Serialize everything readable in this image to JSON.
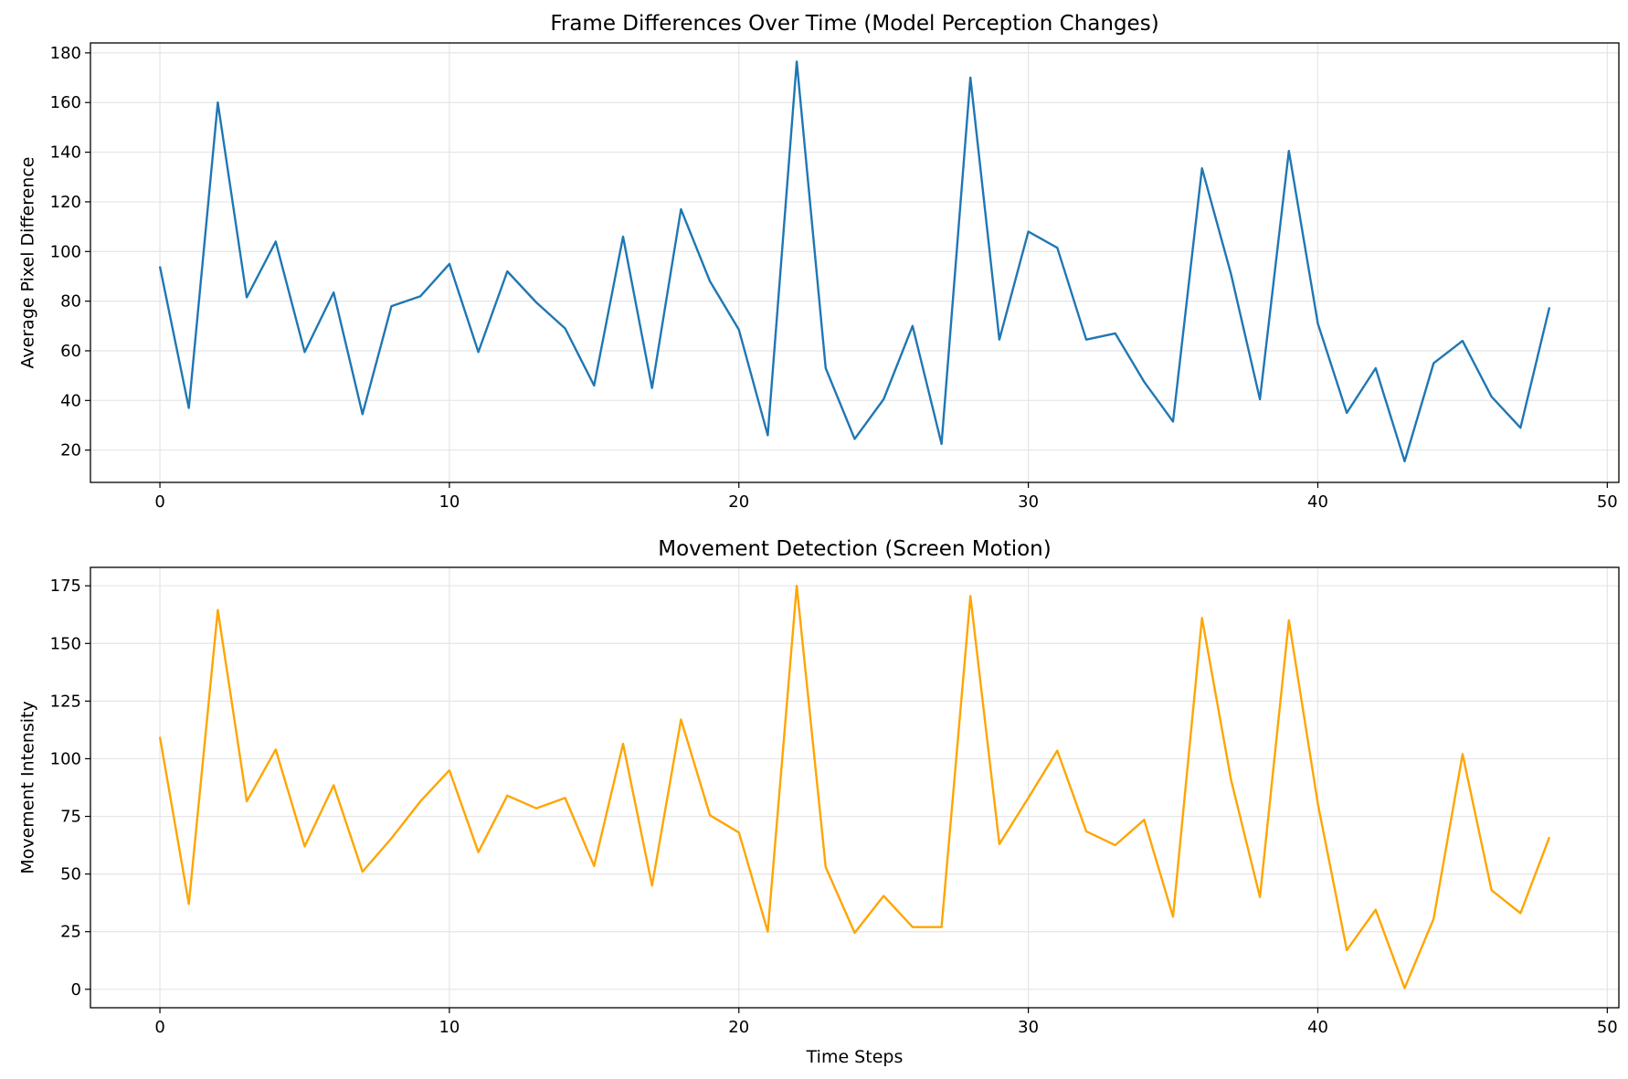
{
  "chart_data": [
    {
      "type": "line",
      "title": "Frame Differences Over Time (Model Perception Changes)",
      "xlabel": "",
      "ylabel": "Average Pixel Difference",
      "xlim": [
        -2.4,
        50.4
      ],
      "ylim": [
        7,
        184
      ],
      "xticks": [
        0,
        10,
        20,
        30,
        40,
        50
      ],
      "yticks": [
        20,
        40,
        60,
        80,
        100,
        120,
        140,
        160,
        180
      ],
      "grid": true,
      "color": "#1f77b4",
      "x": [
        0,
        1,
        2,
        3,
        4,
        5,
        6,
        7,
        8,
        9,
        10,
        11,
        12,
        13,
        14,
        15,
        16,
        17,
        18,
        19,
        20,
        21,
        22,
        23,
        24,
        25,
        26,
        27,
        28,
        29,
        30,
        31,
        32,
        33,
        34,
        35,
        36,
        37,
        38,
        39,
        40,
        41,
        42,
        43,
        44,
        45,
        46,
        47,
        48
      ],
      "y": [
        94,
        37,
        160,
        81.5,
        104,
        59.5,
        83.5,
        34.5,
        78,
        82,
        95,
        59.5,
        92,
        79.5,
        69,
        46,
        106,
        45,
        117,
        88,
        68.5,
        26,
        176.5,
        53,
        24.5,
        40.5,
        70,
        22.5,
        170,
        64.5,
        108,
        101.5,
        64.5,
        67,
        47.5,
        31.5,
        133.5,
        91,
        40.5,
        140.5,
        71,
        35,
        53,
        15.5,
        55,
        64,
        41.5,
        29,
        77.5
      ]
    },
    {
      "type": "line",
      "title": "Movement Detection (Screen Motion)",
      "xlabel": "Time Steps",
      "ylabel": "Movement Intensity",
      "xlim": [
        -2.4,
        50.4
      ],
      "ylim": [
        -8,
        183
      ],
      "xticks": [
        0,
        10,
        20,
        30,
        40,
        50
      ],
      "yticks": [
        0,
        25,
        50,
        75,
        100,
        125,
        150,
        175
      ],
      "grid": true,
      "color": "#ffa500",
      "x": [
        0,
        1,
        2,
        3,
        4,
        5,
        6,
        7,
        8,
        9,
        10,
        11,
        12,
        13,
        14,
        15,
        16,
        17,
        18,
        19,
        20,
        21,
        22,
        23,
        24,
        25,
        26,
        27,
        28,
        29,
        30,
        31,
        32,
        33,
        34,
        35,
        36,
        37,
        38,
        39,
        40,
        41,
        42,
        43,
        44,
        45,
        46,
        47,
        48
      ],
      "y": [
        109.5,
        37,
        164.5,
        81.5,
        104,
        62,
        88.5,
        51,
        65.5,
        81.5,
        95,
        59.5,
        84,
        78.5,
        83,
        53.5,
        106.5,
        45,
        117,
        75.5,
        68,
        25,
        175,
        53,
        24.5,
        40.5,
        27,
        27,
        170.5,
        63,
        83,
        103.5,
        68.5,
        62.5,
        73.5,
        31.5,
        161,
        91,
        40,
        160,
        80.5,
        17,
        34.5,
        0.5,
        30.5,
        102,
        43,
        33,
        66
      ]
    }
  ]
}
